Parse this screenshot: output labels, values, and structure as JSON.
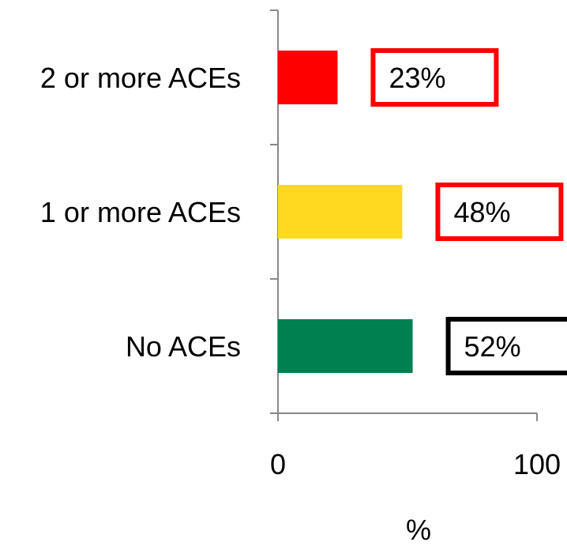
{
  "chart_data": {
    "type": "bar",
    "orientation": "horizontal",
    "categories": [
      "2 or more ACEs",
      "1 or more ACEs",
      "No ACEs"
    ],
    "values": [
      23,
      48,
      52
    ],
    "data_labels": [
      "23%",
      "48%",
      "52%"
    ],
    "bar_colors": [
      "#ff0000",
      "#ffd91f",
      "#008050"
    ],
    "label_box_colors": [
      "#ff0000",
      "#ff0000",
      "#000000"
    ],
    "xlabel": "%",
    "xlim": [
      0,
      100
    ],
    "x_ticks": [
      0,
      100
    ],
    "x_tick_labels": [
      "0",
      "100"
    ],
    "grid": false,
    "legend": "none"
  }
}
